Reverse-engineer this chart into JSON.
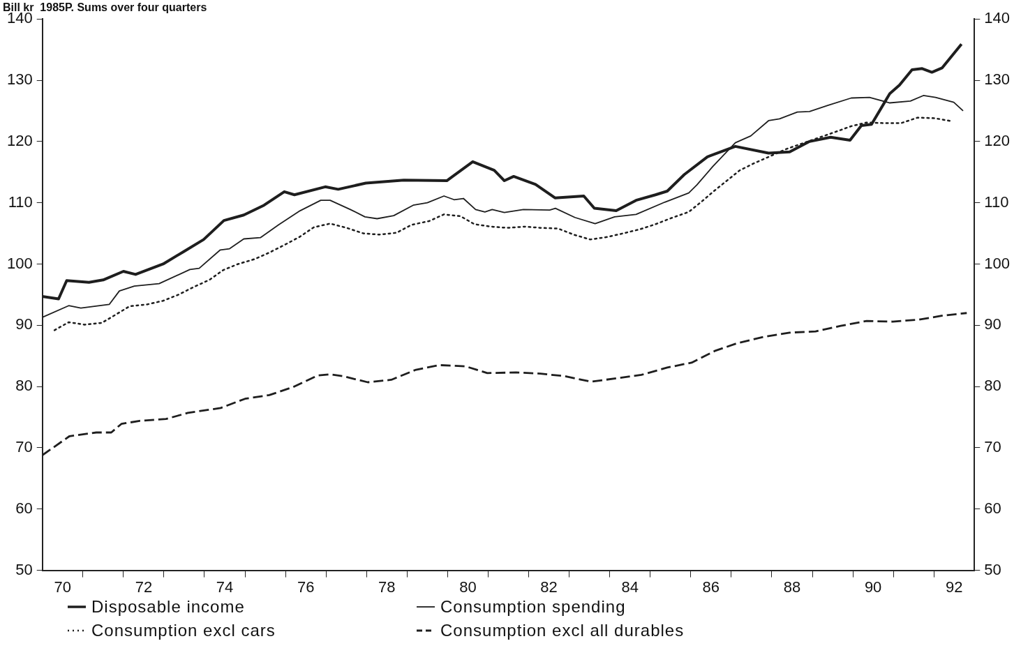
{
  "chart_data": {
    "type": "line",
    "title": "Bill kr  1985P. Sums over four quarters",
    "xlim": [
      69.5,
      92.5
    ],
    "xticks": [
      70,
      {
        "value": 70.5,
        "label": null
      },
      {
        "value": 71.5,
        "label": null
      },
      72,
      {
        "value": 72.5,
        "label": null
      },
      {
        "value": 73.5,
        "label": null
      },
      74,
      {
        "value": 74.5,
        "label": null
      },
      {
        "value": 75.5,
        "label": null
      },
      76,
      {
        "value": 76.5,
        "label": null
      },
      {
        "value": 77.5,
        "label": null
      },
      78,
      {
        "value": 78.5,
        "label": null
      },
      {
        "value": 79.5,
        "label": null
      },
      80,
      {
        "value": 80.5,
        "label": null
      },
      {
        "value": 81.5,
        "label": null
      },
      82,
      {
        "value": 82.5,
        "label": null
      },
      {
        "value": 83.5,
        "label": null
      },
      84,
      {
        "value": 84.5,
        "label": null
      },
      {
        "value": 85.5,
        "label": null
      },
      86,
      {
        "value": 86.5,
        "label": null
      },
      {
        "value": 87.5,
        "label": null
      },
      88,
      {
        "value": 88.5,
        "label": null
      },
      {
        "value": 89.5,
        "label": null
      },
      90,
      {
        "value": 90.5,
        "label": null
      },
      {
        "value": 91.5,
        "label": null
      },
      92
    ],
    "ylim": [
      50,
      140
    ],
    "yticks": [
      50,
      60,
      70,
      80,
      90,
      100,
      110,
      120,
      130,
      140
    ],
    "y2lim": [
      50,
      140
    ],
    "y2ticks": [
      50,
      60,
      70,
      80,
      90,
      100,
      110,
      120,
      130,
      140
    ],
    "legend": "bottom left",
    "grid": false,
    "marker": "none",
    "series": [
      {
        "name": "Disposable income",
        "color": "#1e1e1e",
        "line_style": "solid",
        "x": [
          69.5,
          69.9,
          70.1,
          70.65,
          71.0,
          71.5,
          71.8,
          72.48,
          72.98,
          73.48,
          73.98,
          74.47,
          74.97,
          75.47,
          75.72,
          76.48,
          76.8,
          77.48,
          78.42,
          79.48,
          80.12,
          80.65,
          80.9,
          81.13,
          81.67,
          82.15,
          82.86,
          83.12,
          83.66,
          84.15,
          84.63,
          84.92,
          85.34,
          85.91,
          86.6,
          87.42,
          87.94,
          88.43,
          88.95,
          89.43,
          89.71,
          89.96,
          90.41,
          90.65,
          90.96,
          91.21,
          91.45,
          91.7,
          92.18
        ],
        "values": [
          94.7,
          94.3,
          97.3,
          97.0,
          97.4,
          98.8,
          98.3,
          100.0,
          102.0,
          104.0,
          107.1,
          108.0,
          109.6,
          111.8,
          111.3,
          112.6,
          112.2,
          113.2,
          113.7,
          113.6,
          116.7,
          115.3,
          113.6,
          114.3,
          113.0,
          110.8,
          111.1,
          109.1,
          108.7,
          110.4,
          111.3,
          111.9,
          114.6,
          117.5,
          119.2,
          118.1,
          118.3,
          120.0,
          120.7,
          120.2,
          122.6,
          122.8,
          127.8,
          129.2,
          131.7,
          131.9,
          131.3,
          132.0,
          135.9
        ]
      },
      {
        "name": "Consumption spending",
        "color": "#1e1e1e",
        "line_style": "solid",
        "x": [
          69.5,
          70.15,
          70.45,
          71.15,
          71.4,
          71.77,
          72.38,
          73.14,
          73.37,
          73.89,
          74.12,
          74.47,
          74.88,
          75.33,
          75.86,
          76.37,
          76.6,
          77.1,
          77.46,
          77.76,
          78.17,
          78.65,
          79.0,
          79.41,
          79.66,
          79.89,
          80.19,
          80.42,
          80.6,
          80.9,
          81.37,
          82.02,
          82.16,
          82.64,
          83.14,
          83.62,
          84.15,
          84.86,
          85.45,
          85.65,
          86.04,
          86.6,
          86.98,
          87.42,
          87.69,
          88.13,
          88.43,
          88.88,
          89.46,
          89.91,
          90.41,
          90.92,
          91.24,
          91.54,
          91.99,
          92.22
        ],
        "values": [
          91.3,
          93.2,
          92.8,
          93.4,
          95.6,
          96.4,
          96.8,
          99.1,
          99.3,
          102.3,
          102.5,
          104.1,
          104.3,
          106.4,
          108.7,
          110.4,
          110.4,
          108.9,
          107.7,
          107.4,
          107.9,
          109.6,
          110.0,
          111.1,
          110.5,
          110.7,
          108.9,
          108.5,
          108.9,
          108.4,
          108.9,
          108.8,
          109.1,
          107.6,
          106.6,
          107.7,
          108.1,
          110.1,
          111.6,
          112.9,
          115.9,
          119.8,
          120.9,
          123.4,
          123.7,
          124.8,
          124.9,
          125.9,
          127.1,
          127.2,
          126.3,
          126.6,
          127.5,
          127.2,
          126.4,
          125.0
        ]
      },
      {
        "name": "Consumption excl cars",
        "color": "#1e1e1e",
        "line_style": "dotted",
        "x": [
          69.8,
          70.15,
          70.55,
          70.97,
          71.3,
          71.65,
          72.08,
          72.48,
          72.86,
          73.25,
          73.62,
          73.96,
          74.33,
          74.74,
          75.11,
          75.47,
          75.84,
          76.2,
          76.6,
          77.01,
          77.42,
          77.81,
          78.24,
          78.61,
          79.04,
          79.41,
          79.82,
          80.16,
          80.57,
          80.97,
          81.4,
          81.81,
          82.22,
          82.61,
          83.02,
          83.43,
          83.83,
          84.26,
          84.63,
          85.06,
          85.45,
          85.77,
          86.07,
          86.39,
          86.71,
          87.08,
          87.87,
          89.04,
          89.46,
          89.84,
          90.26,
          90.69,
          91.1,
          91.52,
          91.95
        ],
        "values": [
          89.2,
          90.5,
          90.1,
          90.4,
          91.7,
          93.1,
          93.4,
          94.0,
          95.0,
          96.3,
          97.4,
          99.0,
          100.0,
          100.8,
          101.9,
          103.1,
          104.4,
          106.0,
          106.6,
          105.9,
          105.0,
          104.8,
          105.1,
          106.4,
          107.0,
          108.1,
          107.8,
          106.5,
          106.1,
          105.9,
          106.1,
          105.9,
          105.8,
          104.8,
          104.0,
          104.4,
          105.0,
          105.7,
          106.5,
          107.6,
          108.5,
          110.2,
          111.9,
          113.6,
          115.3,
          116.5,
          118.8,
          121.5,
          122.5,
          123.1,
          123.0,
          123.0,
          123.9,
          123.8,
          123.3
        ]
      },
      {
        "name": "Consumption excl all durables",
        "color": "#1e1e1e",
        "line_style": "dashed",
        "x": [
          69.5,
          70.17,
          70.83,
          71.2,
          71.45,
          71.9,
          72.55,
          73.09,
          73.9,
          74.5,
          75.1,
          75.68,
          76.29,
          76.6,
          76.91,
          77.53,
          78.11,
          78.7,
          79.3,
          79.94,
          80.48,
          81.19,
          81.79,
          82.38,
          83.03,
          83.39,
          84.28,
          84.92,
          85.52,
          86.09,
          86.66,
          87.3,
          87.94,
          88.58,
          89.2,
          89.84,
          90.48,
          91.1,
          91.74,
          92.31
        ],
        "values": [
          68.8,
          71.9,
          72.5,
          72.5,
          73.9,
          74.4,
          74.7,
          75.7,
          76.5,
          78.0,
          78.6,
          79.9,
          81.8,
          82.0,
          81.7,
          80.7,
          81.1,
          82.7,
          83.5,
          83.3,
          82.2,
          82.3,
          82.1,
          81.7,
          80.8,
          81.1,
          81.9,
          83.1,
          83.9,
          85.8,
          87.1,
          88.1,
          88.8,
          89.0,
          89.9,
          90.7,
          90.6,
          90.9,
          91.6,
          92.0
        ]
      }
    ]
  }
}
